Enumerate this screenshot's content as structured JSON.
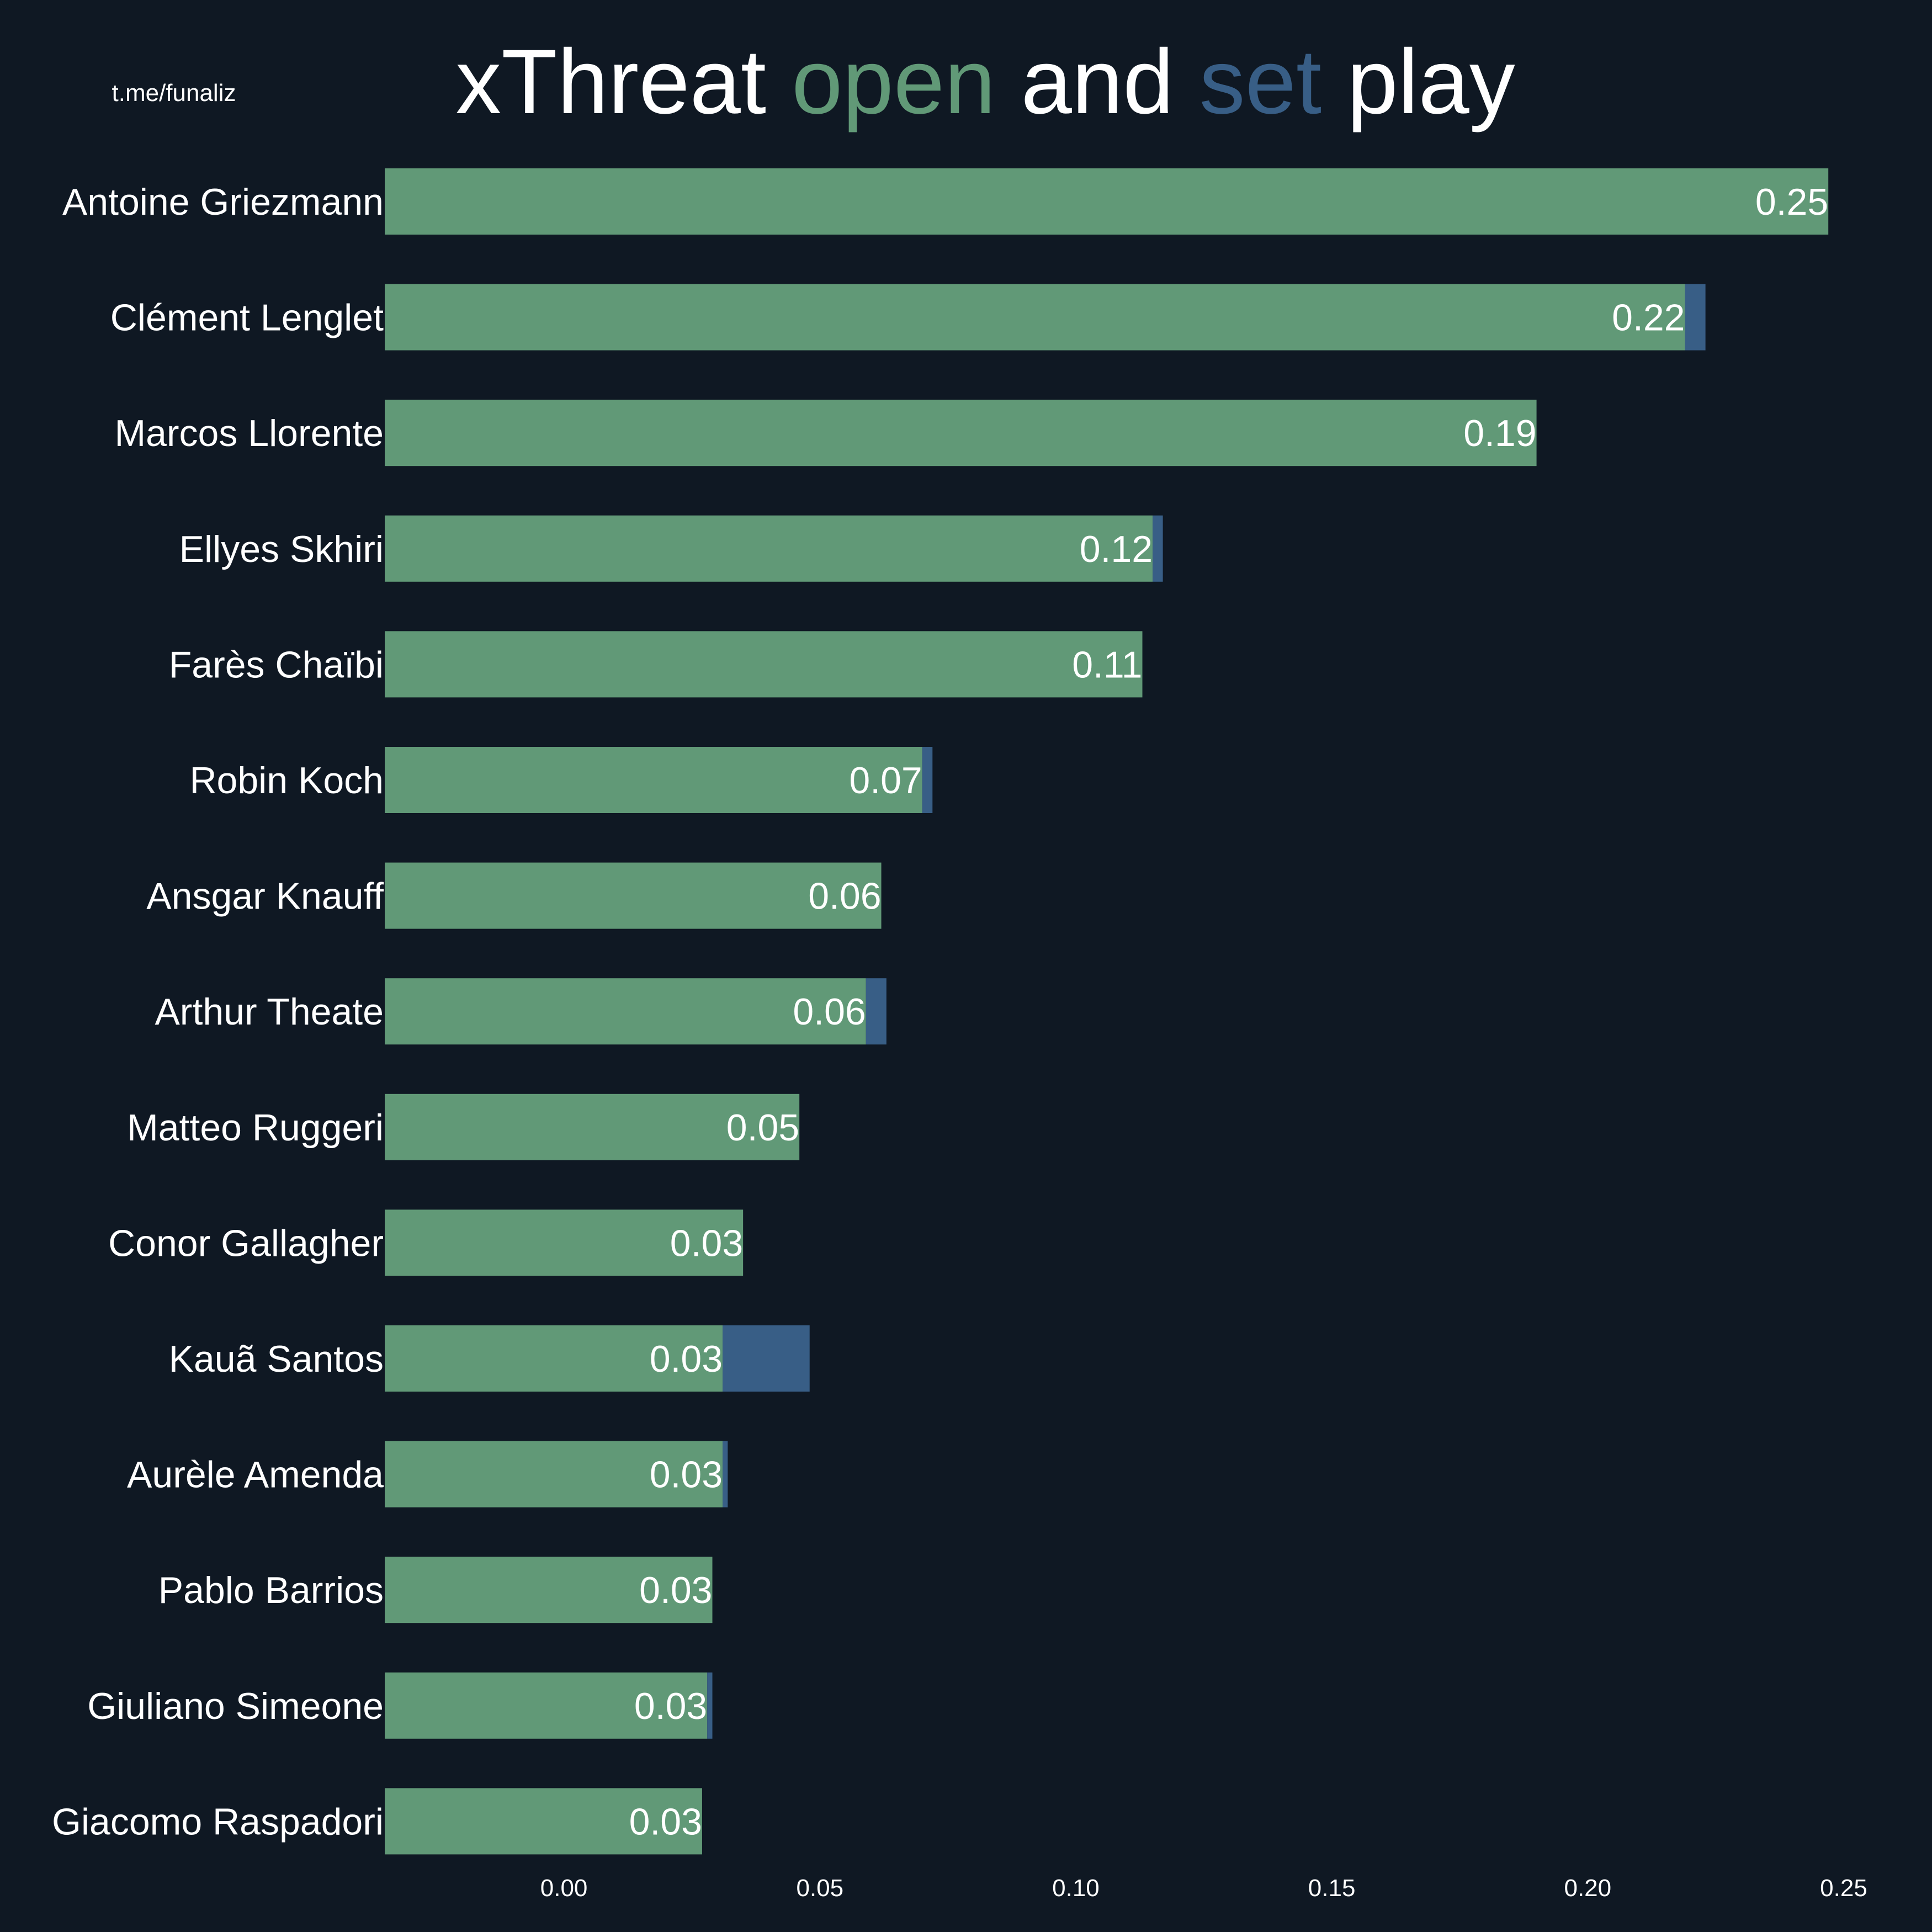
{
  "colors": {
    "background": "#0f1823",
    "open": "#619977",
    "set": "#385e86",
    "text": "#ffffff"
  },
  "watermark": "t.me/funaliz",
  "title": {
    "part1": "xThreat ",
    "part2": "open",
    "part3": " and ",
    "part4": "set",
    "part5": " play"
  },
  "chart_data": {
    "type": "bar",
    "orientation": "horizontal",
    "stacked": true,
    "title": "xThreat open and set play",
    "xlabel": "",
    "ylabel": "",
    "xlim": [
      -0.035,
      0.25
    ],
    "xticks": [
      0.0,
      0.05,
      0.1,
      0.15,
      0.2,
      0.25
    ],
    "xtick_labels": [
      "0.00",
      "0.05",
      "0.10",
      "0.15",
      "0.20",
      "0.25"
    ],
    "grid": false,
    "legend": "none",
    "categories": [
      "Antoine Griezmann",
      "Clément Lenglet",
      "Marcos Llorente",
      "Ellyes Skhiri",
      "Farès Chaïbi",
      "Robin Koch",
      "Ansgar Knauff",
      "Arthur Theate",
      "Matteo Ruggeri",
      "Conor Gallagher",
      "Kauã Santos",
      "Aurèle Amenda",
      "Pablo Barrios",
      "Giuliano Simeone",
      "Giacomo Raspadori"
    ],
    "series": [
      {
        "key": "open",
        "values": [
          0.247,
          0.219,
          0.19,
          0.115,
          0.113,
          0.07,
          0.062,
          0.059,
          0.046,
          0.035,
          0.031,
          0.031,
          0.029,
          0.028,
          0.027
        ]
      },
      {
        "key": "set",
        "values": [
          0.0,
          0.004,
          0.0,
          0.002,
          0.0,
          0.002,
          0.0,
          0.004,
          0.0,
          0.0,
          0.017,
          0.001,
          0.0,
          0.001,
          0.0
        ]
      }
    ],
    "data_labels": [
      "0.25",
      "0.22",
      "0.19",
      "0.12",
      "0.11",
      "0.07",
      "0.06",
      "0.06",
      "0.05",
      "0.03",
      "0.03",
      "0.03",
      "0.03",
      "0.03",
      "0.03"
    ]
  }
}
